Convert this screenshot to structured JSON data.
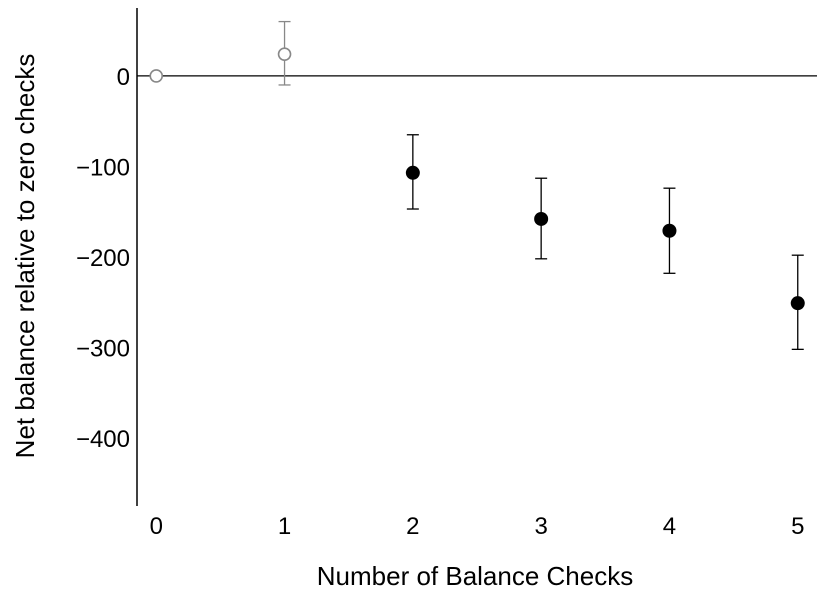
{
  "chart_data": {
    "type": "scatter",
    "xlabel": "Number of Balance Checks",
    "ylabel": "Net balance relative to zero checks",
    "x_ticks": [
      "0",
      "1",
      "2",
      "3",
      "4",
      "5"
    ],
    "y_ticks": [
      "0",
      "−100",
      "−200",
      "−300",
      "−400"
    ],
    "xlim": [
      -0.15,
      5.15
    ],
    "ylim": [
      -475,
      75
    ],
    "reference_line_y": 0,
    "grid": false,
    "legend": "none",
    "points": [
      {
        "x": 0,
        "y": 0,
        "err_low": 0,
        "err_high": 0,
        "style": "open",
        "color": "#888888"
      },
      {
        "x": 1,
        "y": 24,
        "err_low": -10,
        "err_high": 60,
        "style": "open",
        "color": "#888888"
      },
      {
        "x": 2,
        "y": -107,
        "err_low": -147,
        "err_high": -65,
        "style": "filled",
        "color": "#000000"
      },
      {
        "x": 3,
        "y": -158,
        "err_low": -202,
        "err_high": -113,
        "style": "filled",
        "color": "#000000"
      },
      {
        "x": 4,
        "y": -171,
        "err_low": -218,
        "err_high": -124,
        "style": "filled",
        "color": "#000000"
      },
      {
        "x": 5,
        "y": -251,
        "err_low": -302,
        "err_high": -198,
        "style": "filled",
        "color": "#000000"
      }
    ]
  }
}
